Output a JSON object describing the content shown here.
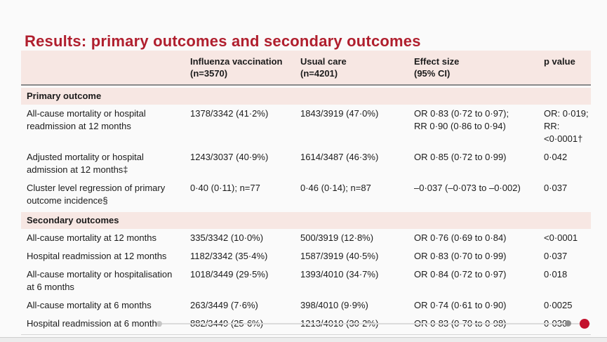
{
  "title": "Results: primary outcomes and secondary outcomes",
  "colors": {
    "title_red": "#b01f2e",
    "band_pink": "#f7e7e3",
    "playhead_red": "#c3132e"
  },
  "table": {
    "headers": {
      "vaccination": "Influenza vaccination\n(n=3570)",
      "usual_care": "Usual care\n(n=4201)",
      "effect": "Effect size\n(95% CI)",
      "p": "p value"
    },
    "sections": [
      {
        "label": "Primary outcome",
        "rows": [
          {
            "label": "All-cause mortality or hospital\nreadmission at 12 months",
            "vaccination": "1378/3342 (41·2%)",
            "usual_care": "1843/3919 (47·0%)",
            "effect": "OR 0·83 (0·72 to 0·97);\nRR 0·90 (0·86 to 0·94)",
            "p": "OR: 0·019;\nRR: <0·0001†"
          },
          {
            "label": "Adjusted mortality or hospital\nadmission at 12 months‡",
            "vaccination": "1243/3037 (40·9%)",
            "usual_care": "1614/3487 (46·3%)",
            "effect": "OR 0·85 (0·72 to 0·99)",
            "p": "0·042"
          },
          {
            "label": "Cluster level regression of primary\noutcome incidence§",
            "vaccination": "0·40 (0·11); n=77",
            "usual_care": "0·46 (0·14); n=87",
            "effect": "–0·037 (–0·073 to –0·002)",
            "p": "0·037"
          }
        ]
      },
      {
        "label": "Secondary outcomes",
        "rows": [
          {
            "label": "All-cause mortality at 12 months",
            "vaccination": "335/3342 (10·0%)",
            "usual_care": "500/3919 (12·8%)",
            "effect": "OR 0·76 (0·69 to 0·84)",
            "p": "<0·0001"
          },
          {
            "label": "Hospital readmission at 12 months",
            "vaccination": "1182/3342 (35·4%)",
            "usual_care": "1587/3919 (40·5%)",
            "effect": "OR 0·83 (0·70 to 0·99)",
            "p": "0·037"
          },
          {
            "label": "All-cause mortality or hospitalisation\nat 6 months",
            "vaccination": "1018/3449 (29·5%)",
            "usual_care": "1393/4010 (34·7%)",
            "effect": "OR 0·84 (0·72 to 0·97)",
            "p": "0·018"
          },
          {
            "label": "All-cause mortality at 6 months",
            "vaccination": "263/3449 (7·6%)",
            "usual_care": "398/4010 (9·9%)",
            "effect": "OR 0·74 (0·61 to 0·90)",
            "p": "0·0025"
          },
          {
            "label": "Hospital readmission at 6 months",
            "vaccination": "882/3449 (25·6%)",
            "usual_care": "1213/4010 (30·2%)",
            "effect": "OR 0·83 (0·70 to 0·98)",
            "p": "0·030"
          }
        ]
      }
    ]
  },
  "scrubber": {
    "playhead_icon": "playhead-dot",
    "marker_icon": "chapter-marker-dot",
    "start_icon": "track-start-dot"
  }
}
